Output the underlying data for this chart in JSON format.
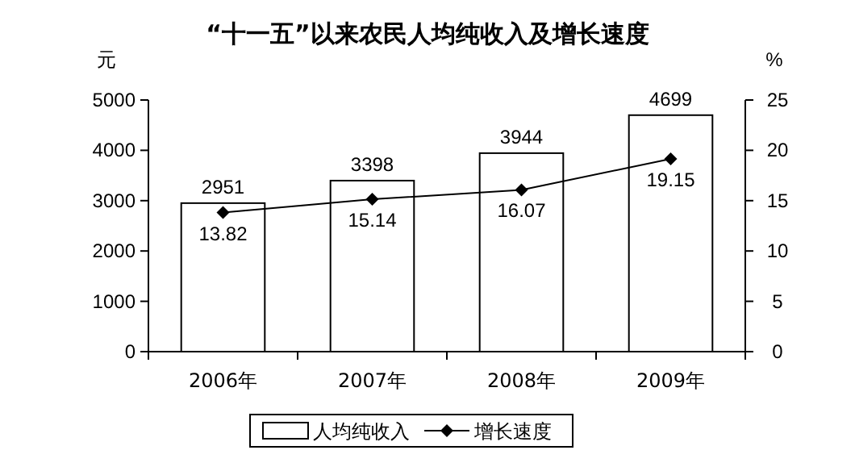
{
  "chart_data": {
    "type": "bar",
    "title": "“十一五”以来农民人均纯收入及增长速度",
    "ylabel": "元",
    "y2label": "%",
    "categories": [
      "2006年",
      "2007年",
      "2008年",
      "2009年"
    ],
    "series": [
      {
        "name": "人均纯收入",
        "color": "#ffffff",
        "values": [
          2951,
          3398,
          3944,
          4699
        ]
      },
      {
        "name": "增长速度",
        "type": "line",
        "axis": "y2",
        "color": "#000000",
        "marker": "diamond",
        "values": [
          13.82,
          15.14,
          16.07,
          19.15
        ]
      }
    ],
    "ylim": [
      0,
      5000
    ],
    "yticks": [
      0,
      1000,
      2000,
      3000,
      4000,
      5000
    ],
    "y2lim": [
      0,
      25
    ],
    "y2ticks": [
      0,
      5,
      10,
      15,
      20,
      25
    ],
    "data_labels": true,
    "legend": "bottom",
    "grid": false
  }
}
